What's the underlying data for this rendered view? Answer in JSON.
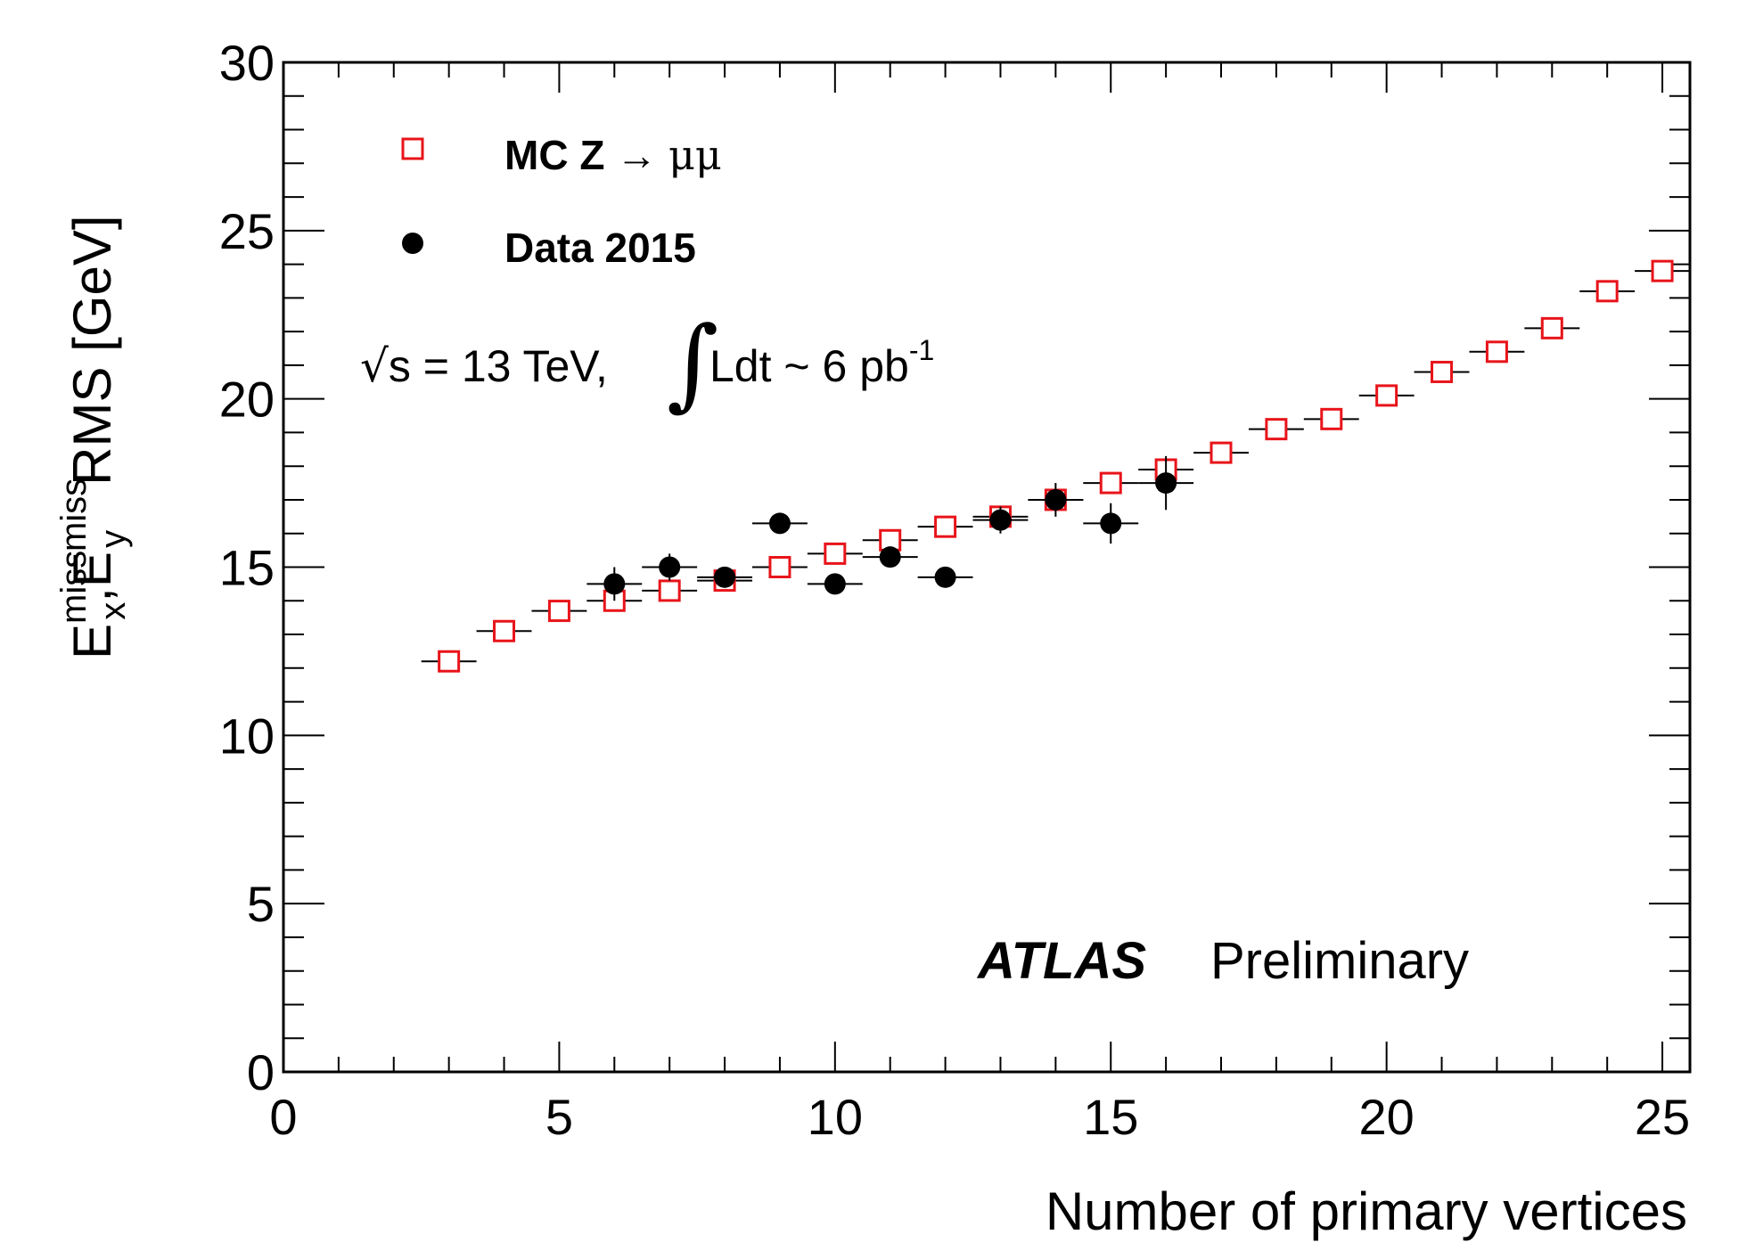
{
  "chart_data": {
    "type": "scatter",
    "xlabel": "Number of primary vertices",
    "ylabel_parts": {
      "e": "E",
      "miss": "miss",
      "x": "x",
      "y": "y",
      "rest": "RMS [GeV]"
    },
    "xlim": [
      0,
      25.5
    ],
    "ylim": [
      0,
      30
    ],
    "x_ticks": [
      0,
      5,
      10,
      15,
      20,
      25
    ],
    "y_ticks": [
      0,
      5,
      10,
      15,
      20,
      25,
      30
    ],
    "legend_position": "top-left",
    "series": [
      {
        "name": "MC Z → μμ",
        "legend_prefix": "MC Z",
        "legend_arrow": "→",
        "legend_suffix": "μμ",
        "marker": "open-square",
        "color": "#e8141a",
        "x": [
          3,
          4,
          5,
          6,
          7,
          8,
          9,
          10,
          11,
          12,
          13,
          14,
          15,
          16,
          17,
          18,
          19,
          20,
          21,
          22,
          23,
          24,
          25
        ],
        "y": [
          12.2,
          13.1,
          13.7,
          14.0,
          14.3,
          14.6,
          15.0,
          15.4,
          15.8,
          16.2,
          16.5,
          17.0,
          17.5,
          17.9,
          18.4,
          19.1,
          19.4,
          20.1,
          20.8,
          21.4,
          22.1,
          23.2,
          23.8
        ],
        "yerr": [
          0.1,
          0.1,
          0.1,
          0.1,
          0.1,
          0.1,
          0.1,
          0.1,
          0.1,
          0.1,
          0.1,
          0.1,
          0.1,
          0.1,
          0.1,
          0.1,
          0.1,
          0.1,
          0.1,
          0.1,
          0.1,
          0.2,
          0.3
        ]
      },
      {
        "name": "Data 2015",
        "marker": "filled-circle",
        "color": "#000000",
        "x": [
          6,
          7,
          8,
          9,
          10,
          11,
          12,
          13,
          14,
          15,
          16
        ],
        "y": [
          14.5,
          15.0,
          14.7,
          16.3,
          14.5,
          15.3,
          14.7,
          16.4,
          17.0,
          16.3,
          17.5
        ],
        "yerr": [
          0.5,
          0.4,
          0.3,
          0.3,
          0.2,
          0.3,
          0.2,
          0.4,
          0.5,
          0.6,
          0.8
        ]
      }
    ],
    "annotations": {
      "sqrt": "√",
      "s_text": "s = 13 TeV,",
      "integral": "∫",
      "lumi_text": "Ldt ~ 6 pb",
      "lumi_exp": "-1",
      "atlas": "ATLAS",
      "preliminary": "Preliminary"
    }
  }
}
